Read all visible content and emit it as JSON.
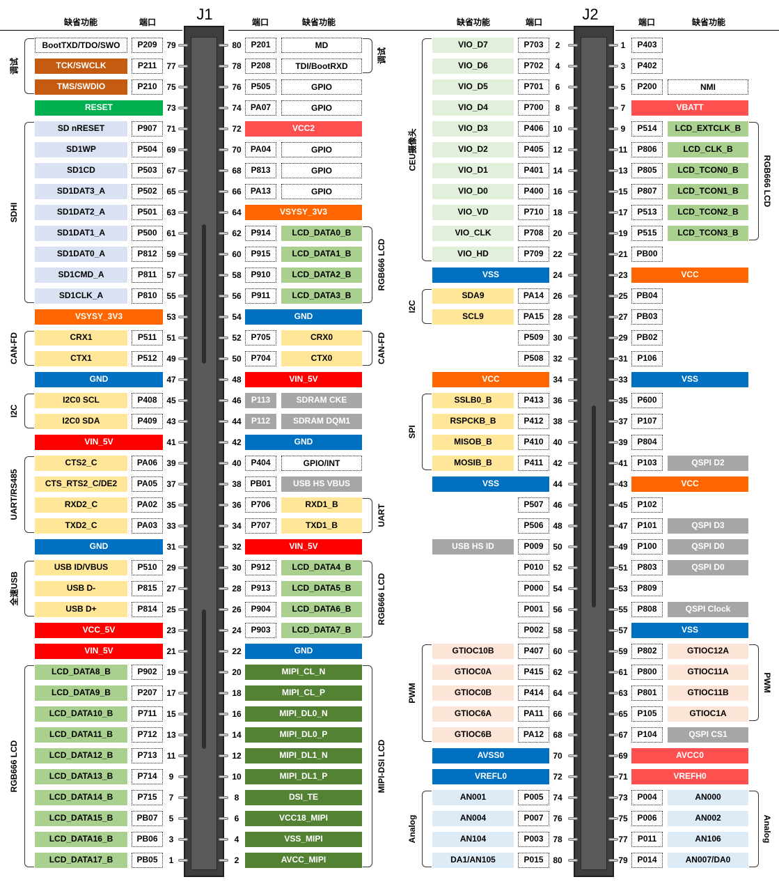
{
  "headers": {
    "func": "缺省功能",
    "port": "端口"
  },
  "connectors": {
    "j1": "J1",
    "j2": "J2"
  },
  "colors": {
    "white": "#ffffff",
    "orange_dark": "#c55a11",
    "green": "#00b050",
    "lavender": "#d9e1f2",
    "orange": "#ff6600",
    "red": "#ff0000",
    "salmon": "#ff5050",
    "blue": "#0070c0",
    "tan": "#ffe699",
    "gray": "#a6a6a6",
    "green_light": "#a9d08e",
    "green_dark": "#548235",
    "green_pale": "#e2efda",
    "peach": "#fce4d6",
    "sky": "#ddebf7"
  },
  "j1_left": [
    {
      "n": "79",
      "port": "P209",
      "func": "BootTXD/TDO/SWO",
      "c": "white"
    },
    {
      "n": "77",
      "port": "P211",
      "func": "TCK/SWCLK",
      "c": "orange_dark"
    },
    {
      "n": "75",
      "port": "P210",
      "func": "TMS/SWDIO",
      "c": "orange_dark"
    },
    {
      "n": "73",
      "port": "",
      "func": "RESET",
      "c": "green",
      "wide": true
    },
    {
      "n": "71",
      "port": "P907",
      "func": "SD nRESET",
      "c": "lavender"
    },
    {
      "n": "69",
      "port": "P504",
      "func": "SD1WP",
      "c": "lavender"
    },
    {
      "n": "67",
      "port": "P503",
      "func": "SD1CD",
      "c": "lavender"
    },
    {
      "n": "65",
      "port": "P502",
      "func": "SD1DAT3_A",
      "c": "lavender"
    },
    {
      "n": "63",
      "port": "P501",
      "func": "SD1DAT2_A",
      "c": "lavender"
    },
    {
      "n": "61",
      "port": "P500",
      "func": "SD1DAT1_A",
      "c": "lavender"
    },
    {
      "n": "59",
      "port": "P812",
      "func": "SD1DAT0_A",
      "c": "lavender"
    },
    {
      "n": "57",
      "port": "P811",
      "func": "SD1CMD_A",
      "c": "lavender"
    },
    {
      "n": "55",
      "port": "P810",
      "func": "SD1CLK_A",
      "c": "lavender"
    },
    {
      "n": "53",
      "port": "",
      "func": "VSYSY_3V3",
      "c": "orange",
      "wide": true
    },
    {
      "n": "51",
      "port": "P511",
      "func": "CRX1",
      "c": "tan"
    },
    {
      "n": "49",
      "port": "P512",
      "func": "CTX1",
      "c": "tan"
    },
    {
      "n": "47",
      "port": "",
      "func": "GND",
      "c": "blue",
      "wide": true
    },
    {
      "n": "45",
      "port": "P408",
      "func": "I2C0 SCL",
      "c": "tan"
    },
    {
      "n": "43",
      "port": "P409",
      "func": "I2C0 SDA",
      "c": "tan"
    },
    {
      "n": "41",
      "port": "",
      "func": "VIN_5V",
      "c": "red",
      "wide": true
    },
    {
      "n": "39",
      "port": "PA06",
      "func": "CTS2_C",
      "c": "tan"
    },
    {
      "n": "37",
      "port": "PA05",
      "func": "CTS_RTS2_C/DE2",
      "c": "tan"
    },
    {
      "n": "35",
      "port": "PA02",
      "func": "RXD2_C",
      "c": "tan"
    },
    {
      "n": "33",
      "port": "PA03",
      "func": "TXD2_C",
      "c": "tan"
    },
    {
      "n": "31",
      "port": "",
      "func": "GND",
      "c": "blue",
      "wide": true
    },
    {
      "n": "29",
      "port": "P510",
      "func": "USB ID/VBUS",
      "c": "tan"
    },
    {
      "n": "27",
      "port": "P815",
      "func": "USB D-",
      "c": "tan"
    },
    {
      "n": "25",
      "port": "P814",
      "func": "USB D+",
      "c": "tan"
    },
    {
      "n": "23",
      "port": "",
      "func": "VCC_5V",
      "c": "red",
      "wide": true
    },
    {
      "n": "21",
      "port": "",
      "func": "VIN_5V",
      "c": "red",
      "wide": true
    },
    {
      "n": "19",
      "port": "P902",
      "func": "LCD_DATA8_B",
      "c": "green_light"
    },
    {
      "n": "17",
      "port": "P207",
      "func": "LCD_DATA9_B",
      "c": "green_light"
    },
    {
      "n": "15",
      "port": "P711",
      "func": "LCD_DATA10_B",
      "c": "green_light"
    },
    {
      "n": "13",
      "port": "P712",
      "func": "LCD_DATA11_B",
      "c": "green_light"
    },
    {
      "n": "11",
      "port": "P713",
      "func": "LCD_DATA12_B",
      "c": "green_light"
    },
    {
      "n": "9",
      "port": "P714",
      "func": "LCD_DATA13_B",
      "c": "green_light"
    },
    {
      "n": "7",
      "port": "P715",
      "func": "LCD_DATA14_B",
      "c": "green_light"
    },
    {
      "n": "5",
      "port": "PB07",
      "func": "LCD_DATA15_B",
      "c": "green_light"
    },
    {
      "n": "3",
      "port": "PB06",
      "func": "LCD_DATA16_B",
      "c": "green_light"
    },
    {
      "n": "1",
      "port": "PB05",
      "func": "LCD_DATA17_B",
      "c": "green_light"
    }
  ],
  "j1_right": [
    {
      "n": "80",
      "port": "P201",
      "func": "MD",
      "c": "white"
    },
    {
      "n": "78",
      "port": "P208",
      "func": "TDI/BootRXD",
      "c": "white"
    },
    {
      "n": "76",
      "port": "P505",
      "func": "GPIO",
      "c": "white"
    },
    {
      "n": "74",
      "port": "PA07",
      "func": "GPIO",
      "c": "white"
    },
    {
      "n": "72",
      "port": "",
      "func": "VCC2",
      "c": "salmon",
      "wide": true
    },
    {
      "n": "70",
      "port": "PA04",
      "func": "GPIO",
      "c": "white"
    },
    {
      "n": "68",
      "port": "P813",
      "func": "GPIO",
      "c": "white"
    },
    {
      "n": "66",
      "port": "PA13",
      "func": "GPIO",
      "c": "white"
    },
    {
      "n": "64",
      "port": "",
      "func": "VSYSY_3V3",
      "c": "orange",
      "wide": true
    },
    {
      "n": "62",
      "port": "P914",
      "func": "LCD_DATA0_B",
      "c": "green_light"
    },
    {
      "n": "60",
      "port": "P915",
      "func": "LCD_DATA1_B",
      "c": "green_light"
    },
    {
      "n": "58",
      "port": "P910",
      "func": "LCD_DATA2_B",
      "c": "green_light"
    },
    {
      "n": "56",
      "port": "P911",
      "func": "LCD_DATA3_B",
      "c": "green_light"
    },
    {
      "n": "54",
      "port": "",
      "func": "GND",
      "c": "blue",
      "wide": true
    },
    {
      "n": "52",
      "port": "P705",
      "func": "CRX0",
      "c": "tan"
    },
    {
      "n": "50",
      "port": "P704",
      "func": "CTX0",
      "c": "tan"
    },
    {
      "n": "48",
      "port": "",
      "func": "VIN_5V",
      "c": "red",
      "wide": true
    },
    {
      "n": "46",
      "port": "P113",
      "func": "SDRAM CKE",
      "c": "gray",
      "gport": true
    },
    {
      "n": "44",
      "port": "P112",
      "func": "SDRAM DQM1",
      "c": "gray",
      "gport": true
    },
    {
      "n": "42",
      "port": "",
      "func": "GND",
      "c": "blue",
      "wide": true
    },
    {
      "n": "40",
      "port": "P404",
      "func": "GPIO/INT",
      "c": "white"
    },
    {
      "n": "38",
      "port": "PB01",
      "func": "USB HS VBUS",
      "c": "gray"
    },
    {
      "n": "36",
      "port": "P706",
      "func": "RXD1_B",
      "c": "tan"
    },
    {
      "n": "34",
      "port": "P707",
      "func": "TXD1_B",
      "c": "tan"
    },
    {
      "n": "32",
      "port": "",
      "func": "VIN_5V",
      "c": "red",
      "wide": true
    },
    {
      "n": "30",
      "port": "P912",
      "func": "LCD_DATA4_B",
      "c": "green_light"
    },
    {
      "n": "28",
      "port": "P913",
      "func": "LCD_DATA5_B",
      "c": "green_light"
    },
    {
      "n": "26",
      "port": "P904",
      "func": "LCD_DATA6_B",
      "c": "green_light"
    },
    {
      "n": "24",
      "port": "P903",
      "func": "LCD_DATA7_B",
      "c": "green_light"
    },
    {
      "n": "22",
      "port": "",
      "func": "GND",
      "c": "blue",
      "wide": true
    },
    {
      "n": "20",
      "port": "",
      "func": "MIPI_CL_N",
      "c": "green_dark",
      "wide": true
    },
    {
      "n": "18",
      "port": "",
      "func": "MIPI_CL_P",
      "c": "green_dark",
      "wide": true
    },
    {
      "n": "16",
      "port": "",
      "func": "MIPI_DL0_N",
      "c": "green_dark",
      "wide": true
    },
    {
      "n": "14",
      "port": "",
      "func": "MIPI_DL0_P",
      "c": "green_dark",
      "wide": true
    },
    {
      "n": "12",
      "port": "",
      "func": "MIPI_DL1_N",
      "c": "green_dark",
      "wide": true
    },
    {
      "n": "10",
      "port": "",
      "func": "MIPI_DL1_P",
      "c": "green_dark",
      "wide": true
    },
    {
      "n": "8",
      "port": "",
      "func": "DSI_TE",
      "c": "green_dark",
      "wide": true
    },
    {
      "n": "6",
      "port": "",
      "func": "VCC18_MIPI",
      "c": "green_dark",
      "wide": true
    },
    {
      "n": "4",
      "port": "",
      "func": "VSS_MIPI",
      "c": "green_dark",
      "wide": true
    },
    {
      "n": "2",
      "port": "",
      "func": "AVCC_MIPI",
      "c": "green_dark",
      "wide": true
    }
  ],
  "j2_left": [
    {
      "n": "2",
      "port": "P703",
      "func": "VIO_D7",
      "c": "green_pale"
    },
    {
      "n": "4",
      "port": "P702",
      "func": "VIO_D6",
      "c": "green_pale"
    },
    {
      "n": "6",
      "port": "P701",
      "func": "VIO_D5",
      "c": "green_pale"
    },
    {
      "n": "8",
      "port": "P700",
      "func": "VIO_D4",
      "c": "green_pale"
    },
    {
      "n": "10",
      "port": "P406",
      "func": "VIO_D3",
      "c": "green_pale"
    },
    {
      "n": "12",
      "port": "P405",
      "func": "VIO_D2",
      "c": "green_pale"
    },
    {
      "n": "14",
      "port": "P401",
      "func": "VIO_D1",
      "c": "green_pale"
    },
    {
      "n": "16",
      "port": "P400",
      "func": "VIO_D0",
      "c": "green_pale"
    },
    {
      "n": "18",
      "port": "P710",
      "func": "VIO_VD",
      "c": "green_pale"
    },
    {
      "n": "20",
      "port": "P708",
      "func": "VIO_CLK",
      "c": "green_pale"
    },
    {
      "n": "22",
      "port": "P709",
      "func": "VIO_HD",
      "c": "green_pale"
    },
    {
      "n": "24",
      "port": "",
      "func": "VSS",
      "c": "blue",
      "wide": true
    },
    {
      "n": "26",
      "port": "PA14",
      "func": "SDA9",
      "c": "tan"
    },
    {
      "n": "28",
      "port": "PA15",
      "func": "SCL9",
      "c": "tan"
    },
    {
      "n": "30",
      "port": "P509",
      "func": "",
      "c": "none"
    },
    {
      "n": "32",
      "port": "P508",
      "func": "",
      "c": "none"
    },
    {
      "n": "34",
      "port": "",
      "func": "VCC",
      "c": "orange",
      "wide": true
    },
    {
      "n": "36",
      "port": "P413",
      "func": "SSLB0_B",
      "c": "tan"
    },
    {
      "n": "38",
      "port": "P412",
      "func": "RSPCKB_B",
      "c": "tan"
    },
    {
      "n": "40",
      "port": "P410",
      "func": "MISOB_B",
      "c": "tan"
    },
    {
      "n": "42",
      "port": "P411",
      "func": "MOSIB_B",
      "c": "tan"
    },
    {
      "n": "44",
      "port": "",
      "func": "VSS",
      "c": "blue",
      "wide": true
    },
    {
      "n": "46",
      "port": "P507",
      "func": "",
      "c": "none"
    },
    {
      "n": "48",
      "port": "P506",
      "func": "",
      "c": "none"
    },
    {
      "n": "50",
      "port": "P009",
      "func": "USB HS ID",
      "c": "gray"
    },
    {
      "n": "52",
      "port": "P010",
      "func": "",
      "c": "none"
    },
    {
      "n": "54",
      "port": "P000",
      "func": "",
      "c": "none"
    },
    {
      "n": "56",
      "port": "P001",
      "func": "",
      "c": "none"
    },
    {
      "n": "58",
      "port": "P002",
      "func": "",
      "c": "none"
    },
    {
      "n": "60",
      "port": "P407",
      "func": "GTIOC10B",
      "c": "peach"
    },
    {
      "n": "62",
      "port": "P415",
      "func": "GTIOC0A",
      "c": "peach"
    },
    {
      "n": "64",
      "port": "P414",
      "func": "GTIOC0B",
      "c": "peach"
    },
    {
      "n": "66",
      "port": "PA11",
      "func": "GTIOC6A",
      "c": "peach"
    },
    {
      "n": "68",
      "port": "PA12",
      "func": "GTIOC6B",
      "c": "peach"
    },
    {
      "n": "70",
      "port": "",
      "func": "AVSS0",
      "c": "blue",
      "wide": true
    },
    {
      "n": "72",
      "port": "",
      "func": "VREFL0",
      "c": "blue",
      "wide": true
    },
    {
      "n": "74",
      "port": "P005",
      "func": "AN001",
      "c": "sky"
    },
    {
      "n": "76",
      "port": "P007",
      "func": "AN004",
      "c": "sky"
    },
    {
      "n": "78",
      "port": "P003",
      "func": "AN104",
      "c": "sky"
    },
    {
      "n": "80",
      "port": "P015",
      "func": "DA1/AN105",
      "c": "sky"
    }
  ],
  "j2_right": [
    {
      "n": "1",
      "port": "P403",
      "func": "",
      "c": "none"
    },
    {
      "n": "3",
      "port": "P402",
      "func": "",
      "c": "none"
    },
    {
      "n": "5",
      "port": "P200",
      "func": "NMI",
      "c": "white"
    },
    {
      "n": "7",
      "port": "",
      "func": "VBATT",
      "c": "salmon",
      "wide": true
    },
    {
      "n": "9",
      "port": "P514",
      "func": "LCD_EXTCLK_B",
      "c": "green_light"
    },
    {
      "n": "11",
      "port": "P806",
      "func": "LCD_CLK_B",
      "c": "green_light"
    },
    {
      "n": "13",
      "port": "P805",
      "func": "LCD_TCON0_B",
      "c": "green_light"
    },
    {
      "n": "15",
      "port": "P807",
      "func": "LCD_TCON1_B",
      "c": "green_light"
    },
    {
      "n": "17",
      "port": "P513",
      "func": "LCD_TCON2_B",
      "c": "green_light"
    },
    {
      "n": "19",
      "port": "P515",
      "func": "LCD_TCON3_B",
      "c": "green_light"
    },
    {
      "n": "21",
      "port": "PB00",
      "func": "",
      "c": "none"
    },
    {
      "n": "23",
      "port": "",
      "func": "VCC",
      "c": "orange",
      "wide": true
    },
    {
      "n": "25",
      "port": "PB04",
      "func": "",
      "c": "none"
    },
    {
      "n": "27",
      "port": "PB03",
      "func": "",
      "c": "none"
    },
    {
      "n": "29",
      "port": "PB02",
      "func": "",
      "c": "none"
    },
    {
      "n": "31",
      "port": "P106",
      "func": "",
      "c": "none"
    },
    {
      "n": "33",
      "port": "",
      "func": "VSS",
      "c": "blue",
      "wide": true
    },
    {
      "n": "35",
      "port": "P600",
      "func": "",
      "c": "none"
    },
    {
      "n": "37",
      "port": "P107",
      "func": "",
      "c": "none"
    },
    {
      "n": "39",
      "port": "P804",
      "func": "",
      "c": "none"
    },
    {
      "n": "41",
      "port": "P103",
      "func": "QSPI D2",
      "c": "gray"
    },
    {
      "n": "43",
      "port": "",
      "func": "VCC",
      "c": "orange",
      "wide": true
    },
    {
      "n": "45",
      "port": "P102",
      "func": "",
      "c": "none"
    },
    {
      "n": "47",
      "port": "P101",
      "func": "QSPI D3",
      "c": "gray"
    },
    {
      "n": "49",
      "port": "P100",
      "func": "QSPI D0",
      "c": "gray"
    },
    {
      "n": "51",
      "port": "P803",
      "func": "QSPI D0",
      "c": "gray"
    },
    {
      "n": "53",
      "port": "P809",
      "func": "",
      "c": "none"
    },
    {
      "n": "55",
      "port": "P808",
      "func": "QSPI Clock",
      "c": "gray"
    },
    {
      "n": "57",
      "port": "",
      "func": "VSS",
      "c": "blue",
      "wide": true
    },
    {
      "n": "59",
      "port": "P802",
      "func": "GTIOC12A",
      "c": "peach"
    },
    {
      "n": "61",
      "port": "P800",
      "func": "GTIOC11A",
      "c": "peach"
    },
    {
      "n": "63",
      "port": "P801",
      "func": "GTIOC11B",
      "c": "peach"
    },
    {
      "n": "65",
      "port": "P105",
      "func": "GTIOC1A",
      "c": "peach"
    },
    {
      "n": "67",
      "port": "P104",
      "func": "QSPI CS1",
      "c": "gray"
    },
    {
      "n": "69",
      "port": "",
      "func": "AVCC0",
      "c": "salmon",
      "wide": true
    },
    {
      "n": "71",
      "port": "",
      "func": "VREFH0",
      "c": "salmon",
      "wide": true
    },
    {
      "n": "73",
      "port": "P004",
      "func": "AN000",
      "c": "sky"
    },
    {
      "n": "75",
      "port": "P006",
      "func": "AN002",
      "c": "sky"
    },
    {
      "n": "77",
      "port": "P011",
      "func": "AN106",
      "c": "sky"
    },
    {
      "n": "79",
      "port": "P014",
      "func": "AN007/DA0",
      "c": "sky"
    }
  ],
  "groups": {
    "j1_left": [
      {
        "label": "调试",
        "from": 0,
        "to": 2
      },
      {
        "label": "SDHI",
        "from": 4,
        "to": 12
      },
      {
        "label": "CAN-FD",
        "from": 14,
        "to": 15
      },
      {
        "label": "I2C",
        "from": 17,
        "to": 18
      },
      {
        "label": "UART/RS485",
        "from": 20,
        "to": 23
      },
      {
        "label": "全速USB",
        "from": 25,
        "to": 27
      },
      {
        "label": "RGB666 LCD",
        "from": 30,
        "to": 39
      }
    ],
    "j1_right": [
      {
        "label": "调试",
        "from": 0,
        "to": 1
      },
      {
        "label": "RGB666 LCD",
        "from": 9,
        "to": 12
      },
      {
        "label": "CAN-FD",
        "from": 14,
        "to": 15
      },
      {
        "label": "UART",
        "from": 22,
        "to": 23
      },
      {
        "label": "RGB666 LCD",
        "from": 25,
        "to": 28
      },
      {
        "label": "MIPI-DSI LCD",
        "from": 30,
        "to": 39
      }
    ],
    "j2_left": [
      {
        "label": "CEU摄像头",
        "from": 0,
        "to": 10
      },
      {
        "label": "I2C",
        "from": 12,
        "to": 13
      },
      {
        "label": "SPI",
        "from": 17,
        "to": 20
      },
      {
        "label": "PWM",
        "from": 29,
        "to": 33
      },
      {
        "label": "Analog",
        "from": 36,
        "to": 39
      }
    ],
    "j2_right": [
      {
        "label": "RGB666 LCD",
        "from": 4,
        "to": 9
      },
      {
        "label": "PWM",
        "from": 29,
        "to": 32
      },
      {
        "label": "Analog",
        "from": 36,
        "to": 39
      }
    ]
  }
}
